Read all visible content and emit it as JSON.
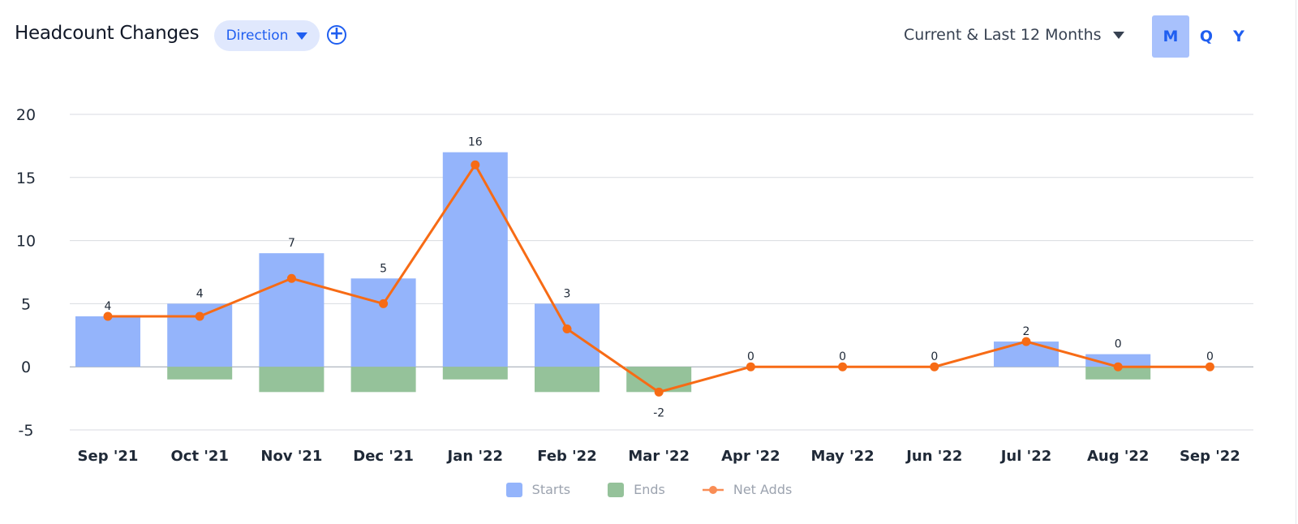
{
  "header": {
    "title": "Headcount Changes",
    "filter_label": "Direction",
    "add_icon": "plus-circle-icon",
    "range_label": "Current & Last 12 Months",
    "periods": [
      {
        "label": "M",
        "active": true
      },
      {
        "label": "Q",
        "active": false
      },
      {
        "label": "Y",
        "active": false
      }
    ]
  },
  "colors": {
    "starts": "#94b4fb",
    "ends": "#95c29a",
    "net": "#f76b15",
    "accent": "#1f5ef0"
  },
  "chart_data": {
    "type": "bar",
    "categories": [
      "Sep '21",
      "Oct '21",
      "Nov '21",
      "Dec '21",
      "Jan '22",
      "Feb '22",
      "Mar '22",
      "Apr '22",
      "May '22",
      "Jun '22",
      "Jul '22",
      "Aug '22",
      "Sep '22"
    ],
    "ylim": [
      -5,
      20
    ],
    "yticks": [
      -5,
      0,
      5,
      10,
      15,
      20
    ],
    "grid": true,
    "legend": "bottom",
    "series": [
      {
        "name": "Starts",
        "type": "bar",
        "values": [
          4,
          5,
          9,
          7,
          17,
          5,
          0,
          0,
          0,
          0,
          2,
          1,
          0
        ]
      },
      {
        "name": "Ends",
        "type": "bar",
        "values": [
          0,
          -1,
          -2,
          -2,
          -1,
          -2,
          -2,
          0,
          0,
          0,
          0,
          -1,
          0
        ]
      },
      {
        "name": "Net Adds",
        "type": "line",
        "values": [
          4,
          4,
          7,
          5,
          16,
          3,
          -2,
          0,
          0,
          0,
          2,
          0,
          0
        ],
        "data_labels": true
      }
    ]
  }
}
